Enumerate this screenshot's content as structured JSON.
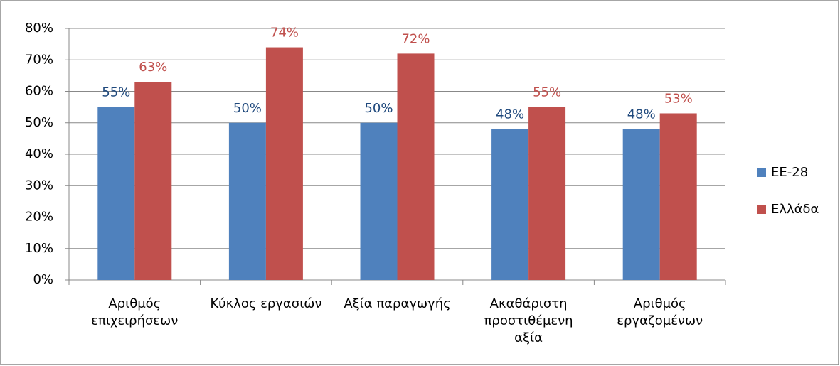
{
  "chart_data": {
    "type": "bar",
    "categories": [
      "Αριθμός επιχειρήσεων",
      "Κύκλος εργασιών",
      "Αξία παραγωγής",
      "Ακαθάριστη προστιθέμενη αξία",
      "Αριθμός εργαζομένων"
    ],
    "series": [
      {
        "name": "ΕΕ-28",
        "color": "#4f81bd",
        "label_color": "#1f497d",
        "values": [
          55,
          50,
          50,
          48,
          48
        ],
        "value_labels": [
          "55%",
          "50%",
          "50%",
          "48%",
          "48%"
        ]
      },
      {
        "name": "Ελλάδα",
        "color": "#c0504d",
        "label_color": "#c0504d",
        "values": [
          63,
          74,
          72,
          55,
          53
        ],
        "value_labels": [
          "63%",
          "74%",
          "72%",
          "55%",
          "53%"
        ]
      }
    ],
    "ylim": [
      0,
      80
    ],
    "yticks": [
      {
        "value": 0,
        "label": "0%"
      },
      {
        "value": 10,
        "label": "10%"
      },
      {
        "value": 20,
        "label": "20%"
      },
      {
        "value": 30,
        "label": "30%"
      },
      {
        "value": 40,
        "label": "40%"
      },
      {
        "value": 50,
        "label": "50%"
      },
      {
        "value": 60,
        "label": "60%"
      },
      {
        "value": 70,
        "label": "70%"
      },
      {
        "value": 80,
        "label": "80%"
      }
    ],
    "grid": true,
    "legend": "right"
  }
}
